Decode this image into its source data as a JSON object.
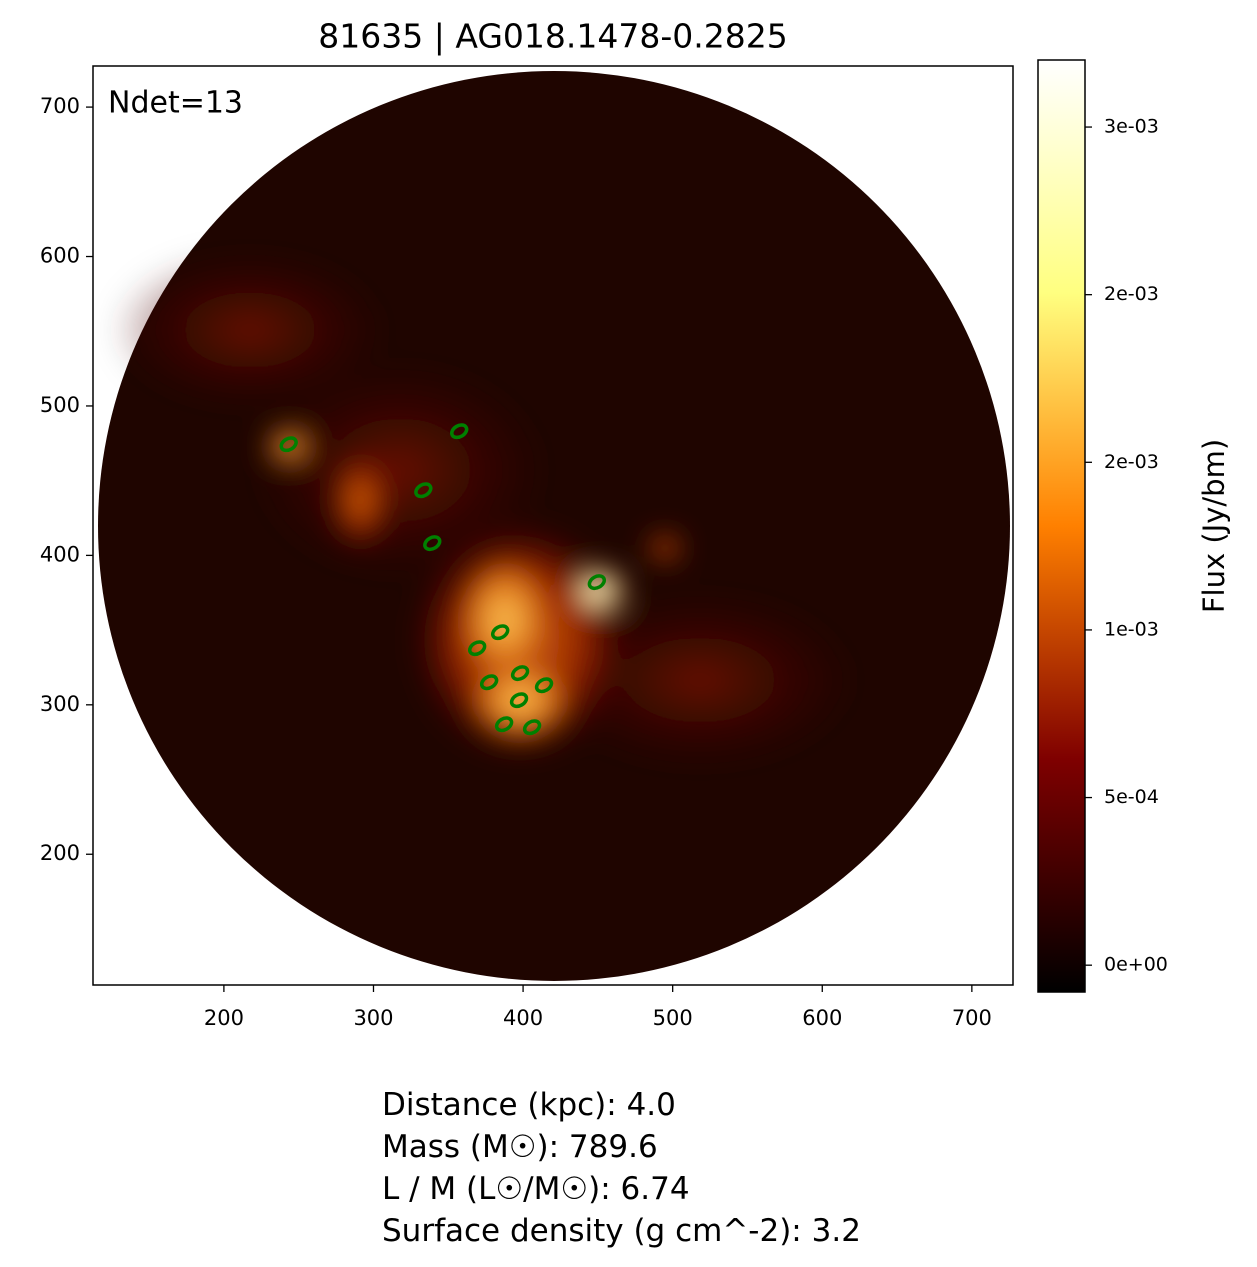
{
  "chart_data": {
    "type": "image",
    "title": "81635 | AG018.1478-0.2825",
    "annotation": "Ndet=13",
    "xlim": [
      112.5,
      727.5
    ],
    "ylim": [
      112.5,
      727.5
    ],
    "xticks": [
      200,
      300,
      400,
      500,
      600,
      700
    ],
    "yticks": [
      200,
      300,
      400,
      500,
      600,
      700
    ],
    "colorbar": {
      "label": "Flux (Jy/bm)",
      "lim": [
        -8e-05,
        0.0027
      ],
      "ticks": [
        {
          "value": 0,
          "label": "0e+00"
        },
        {
          "value": 0.0005,
          "label": "5e-04"
        },
        {
          "value": 0.001,
          "label": "1e-03"
        },
        {
          "value": 0.0015,
          "label": "2e-03"
        },
        {
          "value": 0.002,
          "label": "2e-03"
        },
        {
          "value": 0.0025,
          "label": "3e-03"
        }
      ]
    },
    "detections": {
      "color": "green",
      "x": [
        243.3,
        357.3,
        333.3,
        339.3,
        449.3,
        384.7,
        369.3,
        398.0,
        377.3,
        414.0,
        397.3,
        387.3,
        406.0
      ],
      "y": [
        474.4,
        483.1,
        443.6,
        408.2,
        382.1,
        348.6,
        337.9,
        321.2,
        315.1,
        313.1,
        303.1,
        287.0,
        285.0
      ]
    },
    "notes": [
      "Distance (kpc): 4.0",
      "Mass (M☉): 789.6",
      "L / M (L☉/M☉): 6.74",
      "Surface density (g cm^-2): 3.2"
    ]
  }
}
